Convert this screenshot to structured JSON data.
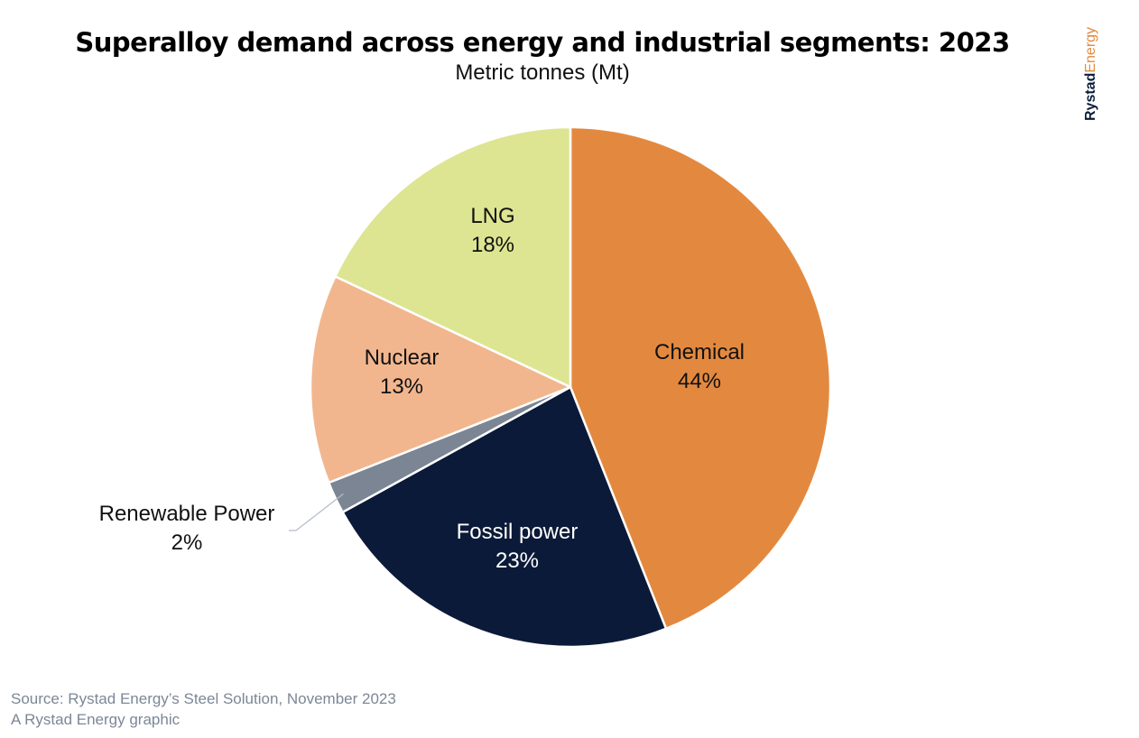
{
  "header": {
    "title": "Superalloy demand across energy and industrial segments: 2023",
    "subtitle": "Metric tonnes (Mt)"
  },
  "brand": {
    "part1": "Rystad",
    "part2": "Energy"
  },
  "footer": {
    "source": "Source: Rystad Energy’s Steel Solution, November 2023",
    "credit": "A Rystad Energy graphic"
  },
  "chart_data": {
    "type": "pie",
    "title": "Superalloy demand across energy and industrial segments: 2023",
    "subtitle": "Metric tonnes (Mt)",
    "slices": [
      {
        "label": "Chemical",
        "value": 44,
        "display": "44%",
        "color": "#e3893f",
        "text_color": "#111111"
      },
      {
        "label": "Fossil power",
        "value": 23,
        "display": "23%",
        "color": "#0b1a38",
        "text_color": "#ffffff"
      },
      {
        "label": "Renewable Power",
        "value": 2,
        "display": "2%",
        "color": "#7b8594",
        "text_color": "#111111",
        "external_label": true
      },
      {
        "label": "Nuclear",
        "value": 13,
        "display": "13%",
        "color": "#f2b68e",
        "text_color": "#111111"
      },
      {
        "label": "LNG",
        "value": 18,
        "display": "18%",
        "color": "#dde592",
        "text_color": "#111111"
      }
    ]
  }
}
